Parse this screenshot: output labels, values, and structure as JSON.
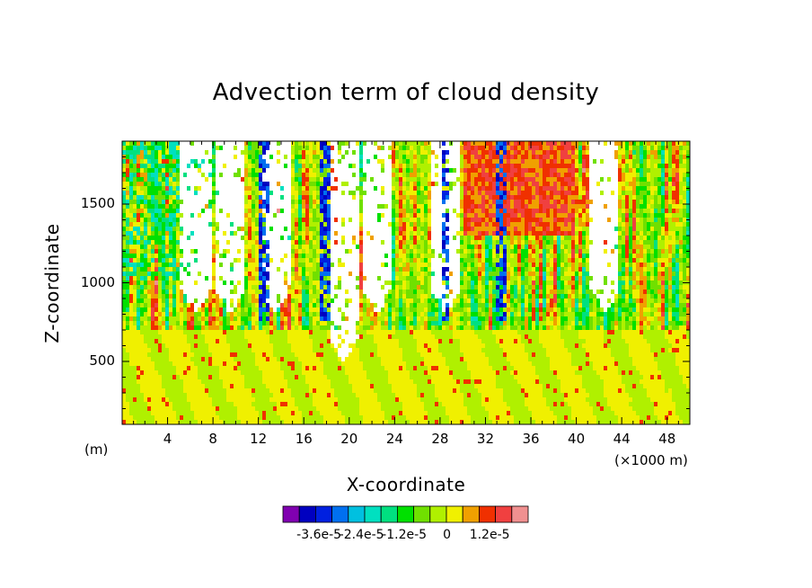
{
  "chart_data": {
    "type": "heatmap",
    "title": "Advection term of cloud density",
    "xlabel": "X-coordinate",
    "ylabel": "Z-coordinate",
    "x_unit_left": "(m)",
    "x_unit_right": "(×1000 m)",
    "x_ticks": [
      "4",
      "8",
      "12",
      "16",
      "20",
      "24",
      "28",
      "32",
      "36",
      "40",
      "44",
      "48"
    ],
    "x_tick_values": [
      4,
      8,
      12,
      16,
      20,
      24,
      28,
      32,
      36,
      40,
      44,
      48
    ],
    "y_ticks": [
      "500",
      "1000",
      "1500"
    ],
    "y_tick_values": [
      500,
      1000,
      1500
    ],
    "xlim": [
      0,
      50
    ],
    "ylim": [
      100,
      1900
    ],
    "colorbar": {
      "labels": [
        "-3.6e-5",
        "-2.4e-5",
        "-1.2e-5",
        "0",
        "1.2e-5"
      ],
      "label_values": [
        -3.6e-05,
        -2.4e-05,
        -1.2e-05,
        0,
        1.2e-05
      ],
      "levels": [
        -4.2e-05,
        -3.6e-05,
        -3e-05,
        -2.4e-05,
        -1.8e-05,
        -1.2e-05,
        -6e-06,
        0,
        6e-06,
        1.2e-05,
        1.8e-05
      ],
      "colors": [
        "#8000b0",
        "#0000c0",
        "#0020e0",
        "#0070f0",
        "#00c0e0",
        "#00e0c0",
        "#00e080",
        "#00e000",
        "#70e000",
        "#b0f000",
        "#f0f000",
        "#f0a000",
        "#f03000",
        "#f04040",
        "#f09090"
      ]
    },
    "notes_regions": {
      "white_columns_x": [
        6.5,
        9.5,
        13.5,
        19.5,
        22.5,
        28.5,
        42.5
      ],
      "negative_edges_x": [
        12.5,
        18,
        28.5,
        33.5
      ]
    }
  }
}
